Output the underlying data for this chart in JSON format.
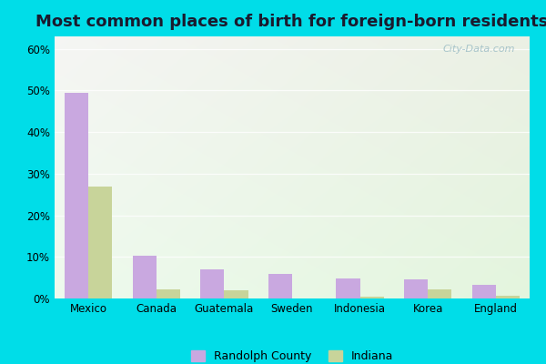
{
  "title": "Most common places of birth for foreign-born residents",
  "categories": [
    "Mexico",
    "Canada",
    "Guatemala",
    "Sweden",
    "Indonesia",
    "Korea",
    "England"
  ],
  "randolph_values": [
    49.5,
    10.2,
    7.0,
    6.0,
    4.8,
    4.6,
    3.2
  ],
  "indiana_values": [
    27.0,
    2.2,
    2.0,
    0.0,
    0.5,
    2.2,
    0.6
  ],
  "randolph_color": "#c9a8e0",
  "indiana_color": "#c8d49a",
  "ylabel_ticks": [
    0,
    10,
    20,
    30,
    40,
    50,
    60
  ],
  "ylabel_labels": [
    "0%",
    "10%",
    "20%",
    "30%",
    "40%",
    "50%",
    "60%"
  ],
  "ylim": [
    0,
    63
  ],
  "legend_randolph": "Randolph County",
  "legend_indiana": "Indiana",
  "bg_outer": "#00dde8",
  "watermark": "City-Data.com",
  "bar_width": 0.35,
  "title_fontsize": 13
}
